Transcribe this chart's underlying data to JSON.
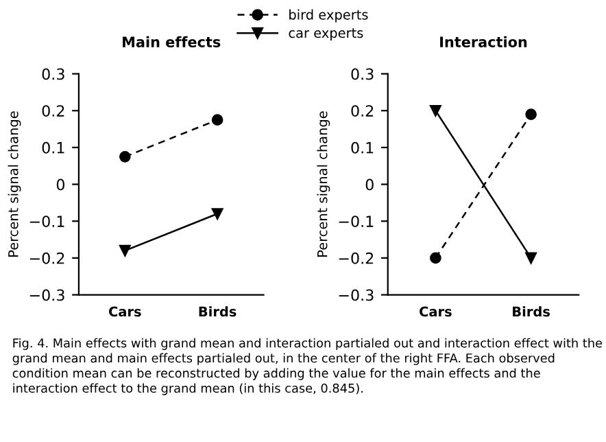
{
  "chart_data": [
    {
      "type": "line",
      "title": "Main effects",
      "ylabel": "Percent signal change",
      "categories": [
        "Cars",
        "Birds"
      ],
      "ylim": [
        -0.3,
        0.3
      ],
      "yticks": [
        {
          "value": -0.3,
          "label": "−0.3"
        },
        {
          "value": -0.2,
          "label": "−0.2"
        },
        {
          "value": -0.1,
          "label": "−0.1"
        },
        0,
        0.1,
        0.2,
        0.3
      ],
      "grid": false,
      "legend": "top",
      "series": [
        {
          "name": "bird experts",
          "color": "#000000",
          "values": [
            0.075,
            0.175
          ],
          "marker": "circle",
          "line_style": "dashed"
        },
        {
          "name": "car experts",
          "color": "#000000",
          "values": [
            -0.18,
            -0.08
          ],
          "marker": "triangle",
          "line_style": "solid"
        }
      ],
      "annotations": [
        "Fig. 4. Main effects with grand mean and interaction partialed out and interaction effect with the grand mean and main effects partialed out, in the center of the right FFA. Each observed condition mean can be reconstructed by adding the value for the main effects and the interaction effect to the grand mean (in this case, 0.845)."
      ]
    },
    {
      "type": "line",
      "title": "Interaction",
      "ylabel": "Percent signal change",
      "categories": [
        "Cars",
        "Birds"
      ],
      "ylim": [
        -0.3,
        0.3
      ],
      "yticks": [
        {
          "value": -0.3,
          "label": "−0.3"
        },
        {
          "value": -0.2,
          "label": "−0.2"
        },
        {
          "value": -0.1,
          "label": "−0.1"
        },
        0,
        0.1,
        0.2,
        0.3
      ],
      "grid": false,
      "series": [
        {
          "color": "#000000",
          "values": [
            -0.2,
            0.19
          ],
          "marker": "circle",
          "line_style": "dashed"
        },
        {
          "color": "#000000",
          "values": [
            0.2,
            -0.2
          ],
          "marker": "triangle",
          "line_style": "solid"
        }
      ]
    }
  ]
}
